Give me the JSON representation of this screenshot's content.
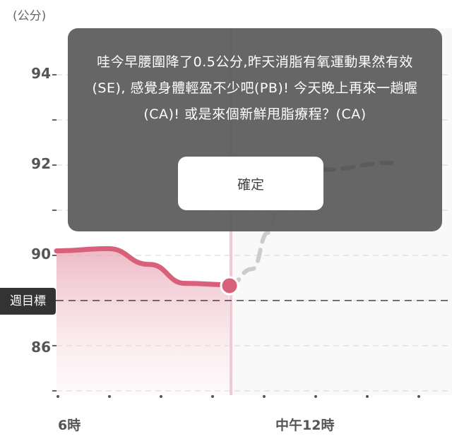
{
  "chart": {
    "unit_label": "(公分)",
    "y_ticks": [
      "94",
      "92",
      "90",
      "86"
    ],
    "goal_label": "週目標",
    "x_ticks": [
      "6時",
      "中午12時"
    ]
  },
  "chart_data": {
    "type": "line",
    "ylabel": "(公分)",
    "y_ticks": [
      94,
      92,
      90,
      86
    ],
    "x_ticks": [
      "6時",
      "中午12時"
    ],
    "goal_line_label": "週目標",
    "series": [
      {
        "style": "solid",
        "color": "#d9607a",
        "points": [
          [
            0,
            90.1
          ],
          [
            1,
            90.15
          ],
          [
            1.8,
            89.8
          ],
          [
            2.5,
            89.38
          ],
          [
            3.35,
            89.35
          ]
        ]
      },
      {
        "style": "dashed",
        "color": "#cccccc",
        "points": [
          [
            3.35,
            89.35
          ],
          [
            3.8,
            89.7
          ],
          [
            4.1,
            90.5
          ],
          [
            4.4,
            91.8
          ]
        ]
      },
      {
        "style": "dashed",
        "color": "#666666",
        "points": [
          [
            4.4,
            91.8
          ],
          [
            5.2,
            91.9
          ],
          [
            6.5,
            92.05
          ]
        ]
      }
    ]
  },
  "dialog": {
    "message": "哇今早腰圍降了0.5公分,昨天消脂有氧運動果然有效(SE), 感覺身體輕盈不少吧(PB)! 今天晚上再來一趟喔(CA)! 或是來個新鮮甩脂療程？(CA)",
    "confirm_label": "確定"
  }
}
